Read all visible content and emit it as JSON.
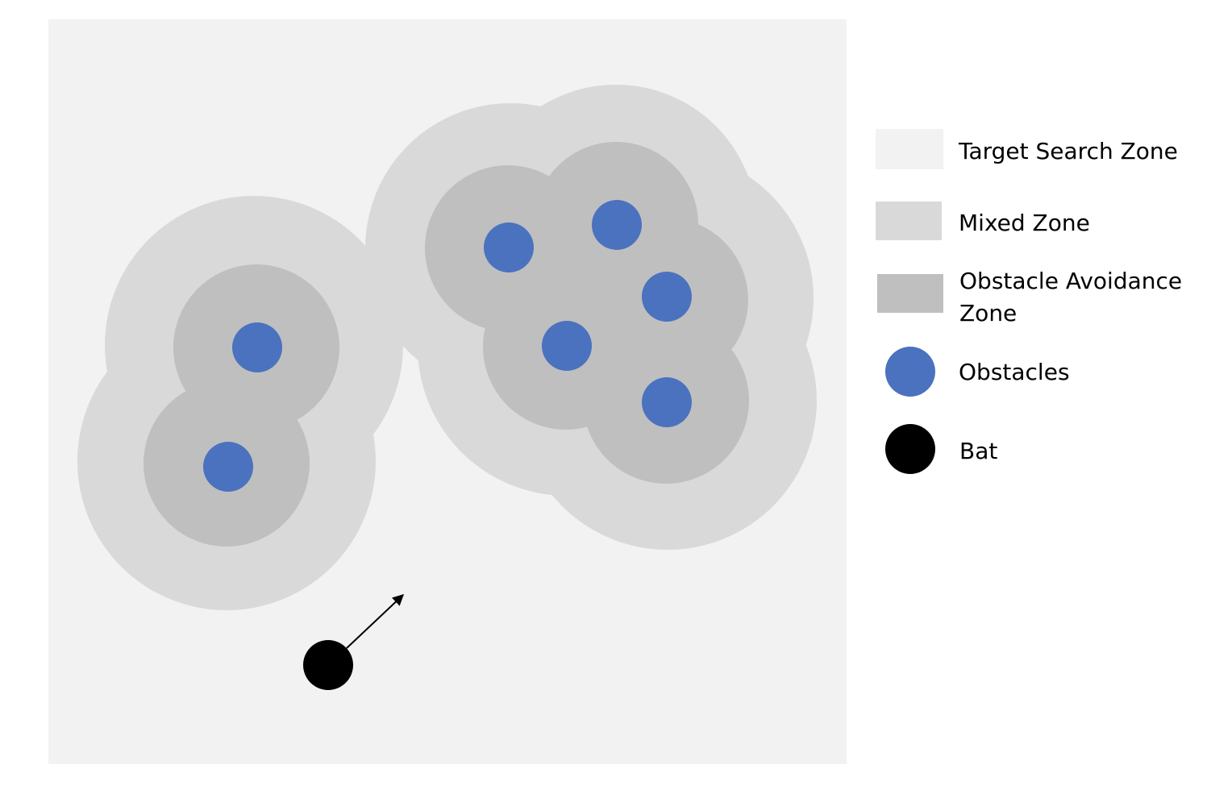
{
  "colors": {
    "target_search_zone": "#f2f2f2",
    "mixed_zone": "#d9d9d9",
    "obstacle_avoidance_zone": "#bfbfbf",
    "obstacle": "#4a72bf",
    "bat": "#000000"
  },
  "legend": {
    "target_search_zone": "Target Search Zone",
    "mixed_zone": "Mixed Zone",
    "obstacle_avoidance_zone_line1": "Obstacle Avoidance",
    "obstacle_avoidance_zone_line2": "Zone",
    "obstacles": "Obstacles",
    "bat": "Bat"
  }
}
